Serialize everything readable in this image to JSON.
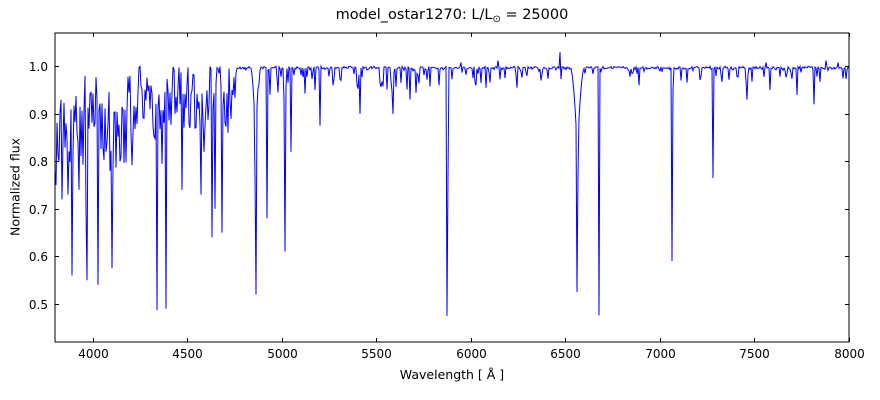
{
  "figure": {
    "title_parts": {
      "main": "model_ostar1270: L/L",
      "sub": "⊙",
      "rest": " = 25000"
    }
  },
  "chart_data": {
    "type": "line",
    "title": "model_ostar1270: L/L⊙ = 25000",
    "xlabel": "Wavelength [ Å ]",
    "ylabel": "Normalized flux",
    "xlim": [
      3800,
      8000
    ],
    "ylim": [
      0.42,
      1.07
    ],
    "xticks": [
      4000,
      4500,
      5000,
      5500,
      6000,
      6500,
      7000,
      7500,
      8000
    ],
    "yticks": [
      0.5,
      0.6,
      0.7,
      0.8,
      0.9,
      1.0
    ],
    "grid": false,
    "legend": null,
    "line_color": "#0000ff",
    "axis_color": "#000000",
    "background_color": "#ffffff",
    "continuum_flux": 1.0,
    "series": [
      {
        "name": "model_ostar1270 spectrum",
        "description": "Normalized stellar spectrum: continuum at 1.0 with absorption lines [wavelength_A, min_flux, core_halfwidth_A, optional wing_halfwidth_A, optional wing_depth]",
        "absorption_lines": [
          [
            3792,
            0.86,
            3
          ],
          [
            3798,
            0.78,
            3
          ],
          [
            3805,
            0.75,
            4
          ],
          [
            3820,
            0.8,
            3
          ],
          [
            3835,
            0.72,
            5
          ],
          [
            3856,
            0.88,
            3
          ],
          [
            3868,
            0.73,
            3
          ],
          [
            3889,
            0.56,
            5
          ],
          [
            3926,
            0.74,
            4
          ],
          [
            3964,
            0.7,
            4
          ],
          [
            3970,
            0.55,
            5
          ],
          [
            4009,
            0.88,
            3
          ],
          [
            4026,
            0.54,
            5
          ],
          [
            4069,
            0.82,
            3
          ],
          [
            4089,
            0.78,
            3
          ],
          [
            4102,
            0.575,
            6,
            24,
            0.12
          ],
          [
            4121,
            0.82,
            3
          ],
          [
            4144,
            0.8,
            4
          ],
          [
            4169,
            0.92,
            3
          ],
          [
            4200,
            0.86,
            4
          ],
          [
            4227,
            0.93,
            3
          ],
          [
            4267,
            0.9,
            3
          ],
          [
            4317,
            0.9,
            3
          ],
          [
            4340,
            0.487,
            6,
            26,
            0.13
          ],
          [
            4387,
            0.49,
            5
          ],
          [
            4437,
            0.9,
            3
          ],
          [
            4471,
            0.74,
            5
          ],
          [
            4511,
            0.88,
            3
          ],
          [
            4542,
            0.87,
            4
          ],
          [
            4570,
            0.73,
            4
          ],
          [
            4590,
            0.82,
            3
          ],
          [
            4632,
            0.64,
            4
          ],
          [
            4647,
            0.7,
            3
          ],
          [
            4686,
            0.65,
            4
          ],
          [
            4713,
            0.86,
            3
          ],
          [
            4861,
            0.52,
            7,
            28,
            0.16
          ],
          [
            4922,
            0.68,
            5
          ],
          [
            5015,
            0.61,
            5
          ],
          [
            5048,
            0.82,
            4
          ],
          [
            5173,
            0.95,
            3
          ],
          [
            5200,
            0.875,
            4
          ],
          [
            5270,
            0.96,
            3
          ],
          [
            5411,
            0.9,
            4
          ],
          [
            5590,
            0.9,
            4
          ],
          [
            5680,
            0.93,
            3
          ],
          [
            5876,
            0.475,
            6
          ],
          [
            6029,
            0.96,
            3
          ],
          [
            6082,
            0.955,
            3
          ],
          [
            6246,
            0.955,
            3
          ],
          [
            6371,
            0.97,
            3
          ],
          [
            6563,
            0.525,
            8,
            40,
            0.18
          ],
          [
            6678,
            0.476,
            5
          ],
          [
            6890,
            0.96,
            3
          ],
          [
            7065,
            0.59,
            5
          ],
          [
            7112,
            0.97,
            3
          ],
          [
            7281,
            0.765,
            4
          ],
          [
            7463,
            0.93,
            3
          ],
          [
            7580,
            0.95,
            3
          ],
          [
            7725,
            0.94,
            3
          ],
          [
            7816,
            0.92,
            3
          ]
        ],
        "emission_spikes": [
          [
            5948,
            1.008
          ],
          [
            6142,
            1.012
          ],
          [
            6471,
            1.03
          ],
          [
            7560,
            1.008
          ],
          [
            7880,
            1.012
          ],
          [
            7940,
            1.008
          ]
        ],
        "line_forest_texture": {
          "seed": 1270,
          "pixel_jitter": 0.004,
          "segments": [
            {
              "range": [
                3800,
                4400
              ],
              "per_angstrom": 0.3,
              "depth": [
                0.02,
                0.22
              ],
              "bias": 2.2
            },
            {
              "range": [
                4400,
                4760
              ],
              "per_angstrom": 0.22,
              "depth": [
                0.015,
                0.13
              ],
              "bias": 2.0
            },
            {
              "range": [
                4760,
                5900
              ],
              "per_angstrom": 0.06,
              "depth": [
                0.005,
                0.06
              ],
              "bias": 2.2
            },
            {
              "range": [
                5900,
                8000
              ],
              "per_angstrom": 0.05,
              "depth": [
                0.004,
                0.035
              ],
              "bias": 2.0
            }
          ]
        }
      }
    ]
  }
}
